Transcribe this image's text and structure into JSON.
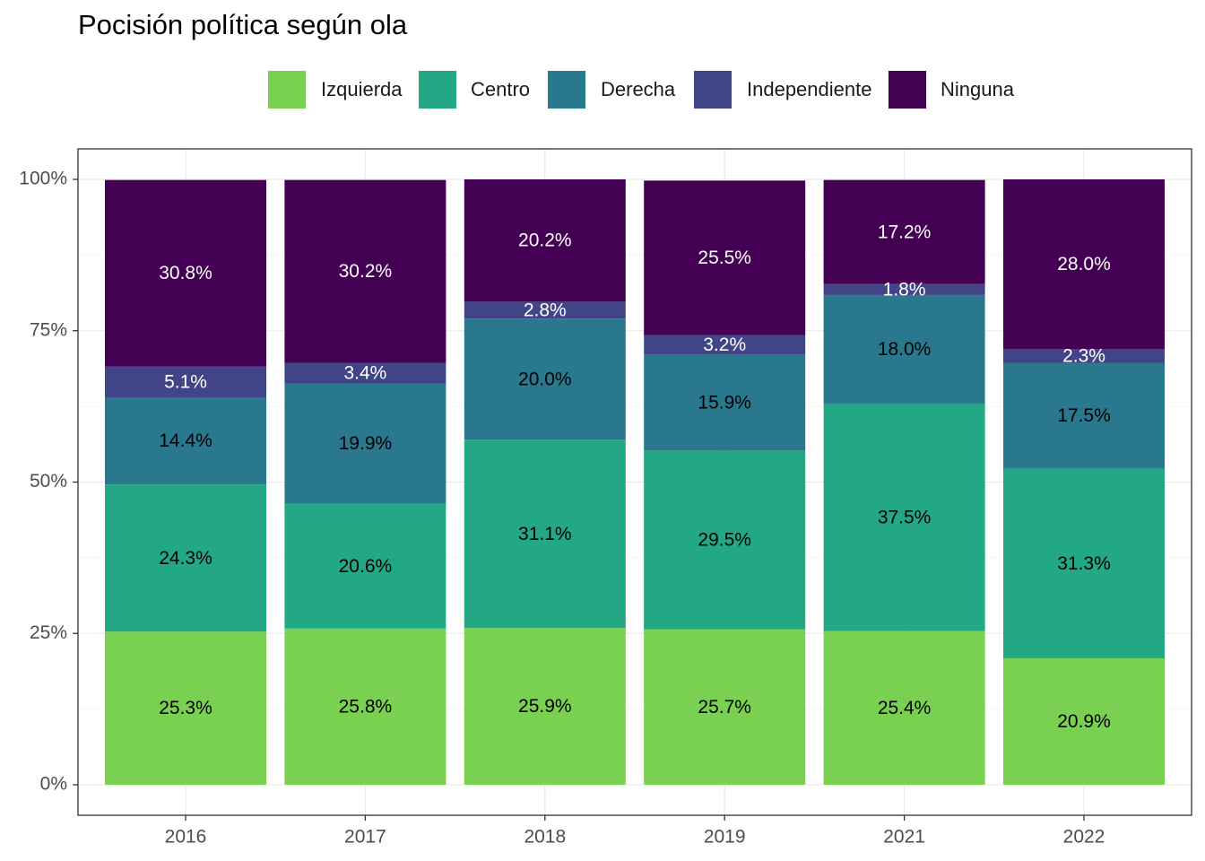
{
  "chart_data": {
    "type": "bar",
    "stacked": true,
    "title": "Pocisión política según ola",
    "xlabel": "",
    "ylabel": "",
    "categories": [
      "2016",
      "2017",
      "2018",
      "2019",
      "2021",
      "2022"
    ],
    "y_ticks": [
      "0%",
      "25%",
      "50%",
      "75%",
      "100%"
    ],
    "ylim": [
      0,
      100
    ],
    "legend_position": "top",
    "grid": true,
    "series": [
      {
        "name": "Izquierda",
        "color": "#7AD151",
        "label_color": "#000000",
        "values": [
          25.3,
          25.8,
          25.9,
          25.7,
          25.4,
          20.9
        ],
        "labels": [
          "25.3%",
          "25.8%",
          "25.9%",
          "25.7%",
          "25.4%",
          "20.9%"
        ]
      },
      {
        "name": "Centro",
        "color": "#22A884",
        "label_color": "#000000",
        "values": [
          24.3,
          20.6,
          31.1,
          29.5,
          37.5,
          31.3
        ],
        "labels": [
          "24.3%",
          "20.6%",
          "31.1%",
          "29.5%",
          "37.5%",
          "31.3%"
        ]
      },
      {
        "name": "Derecha",
        "color": "#2A788E",
        "label_color": "#000000",
        "values": [
          14.4,
          19.9,
          20.0,
          15.9,
          18.0,
          17.5
        ],
        "labels": [
          "14.4%",
          "19.9%",
          "20.0%",
          "15.9%",
          "18.0%",
          "17.5%"
        ]
      },
      {
        "name": "Independiente",
        "color": "#414487",
        "label_color": "#ffffff",
        "values": [
          5.1,
          3.4,
          2.8,
          3.2,
          1.8,
          2.3
        ],
        "labels": [
          "5.1%",
          "3.4%",
          "2.8%",
          "3.2%",
          "1.8%",
          "2.3%"
        ]
      },
      {
        "name": "Ninguna",
        "color": "#440154",
        "label_color": "#ffffff",
        "values": [
          30.8,
          30.2,
          20.2,
          25.5,
          17.2,
          28.0
        ],
        "labels": [
          "30.8%",
          "30.2%",
          "20.2%",
          "25.5%",
          "17.2%",
          "28.0%"
        ]
      }
    ]
  }
}
